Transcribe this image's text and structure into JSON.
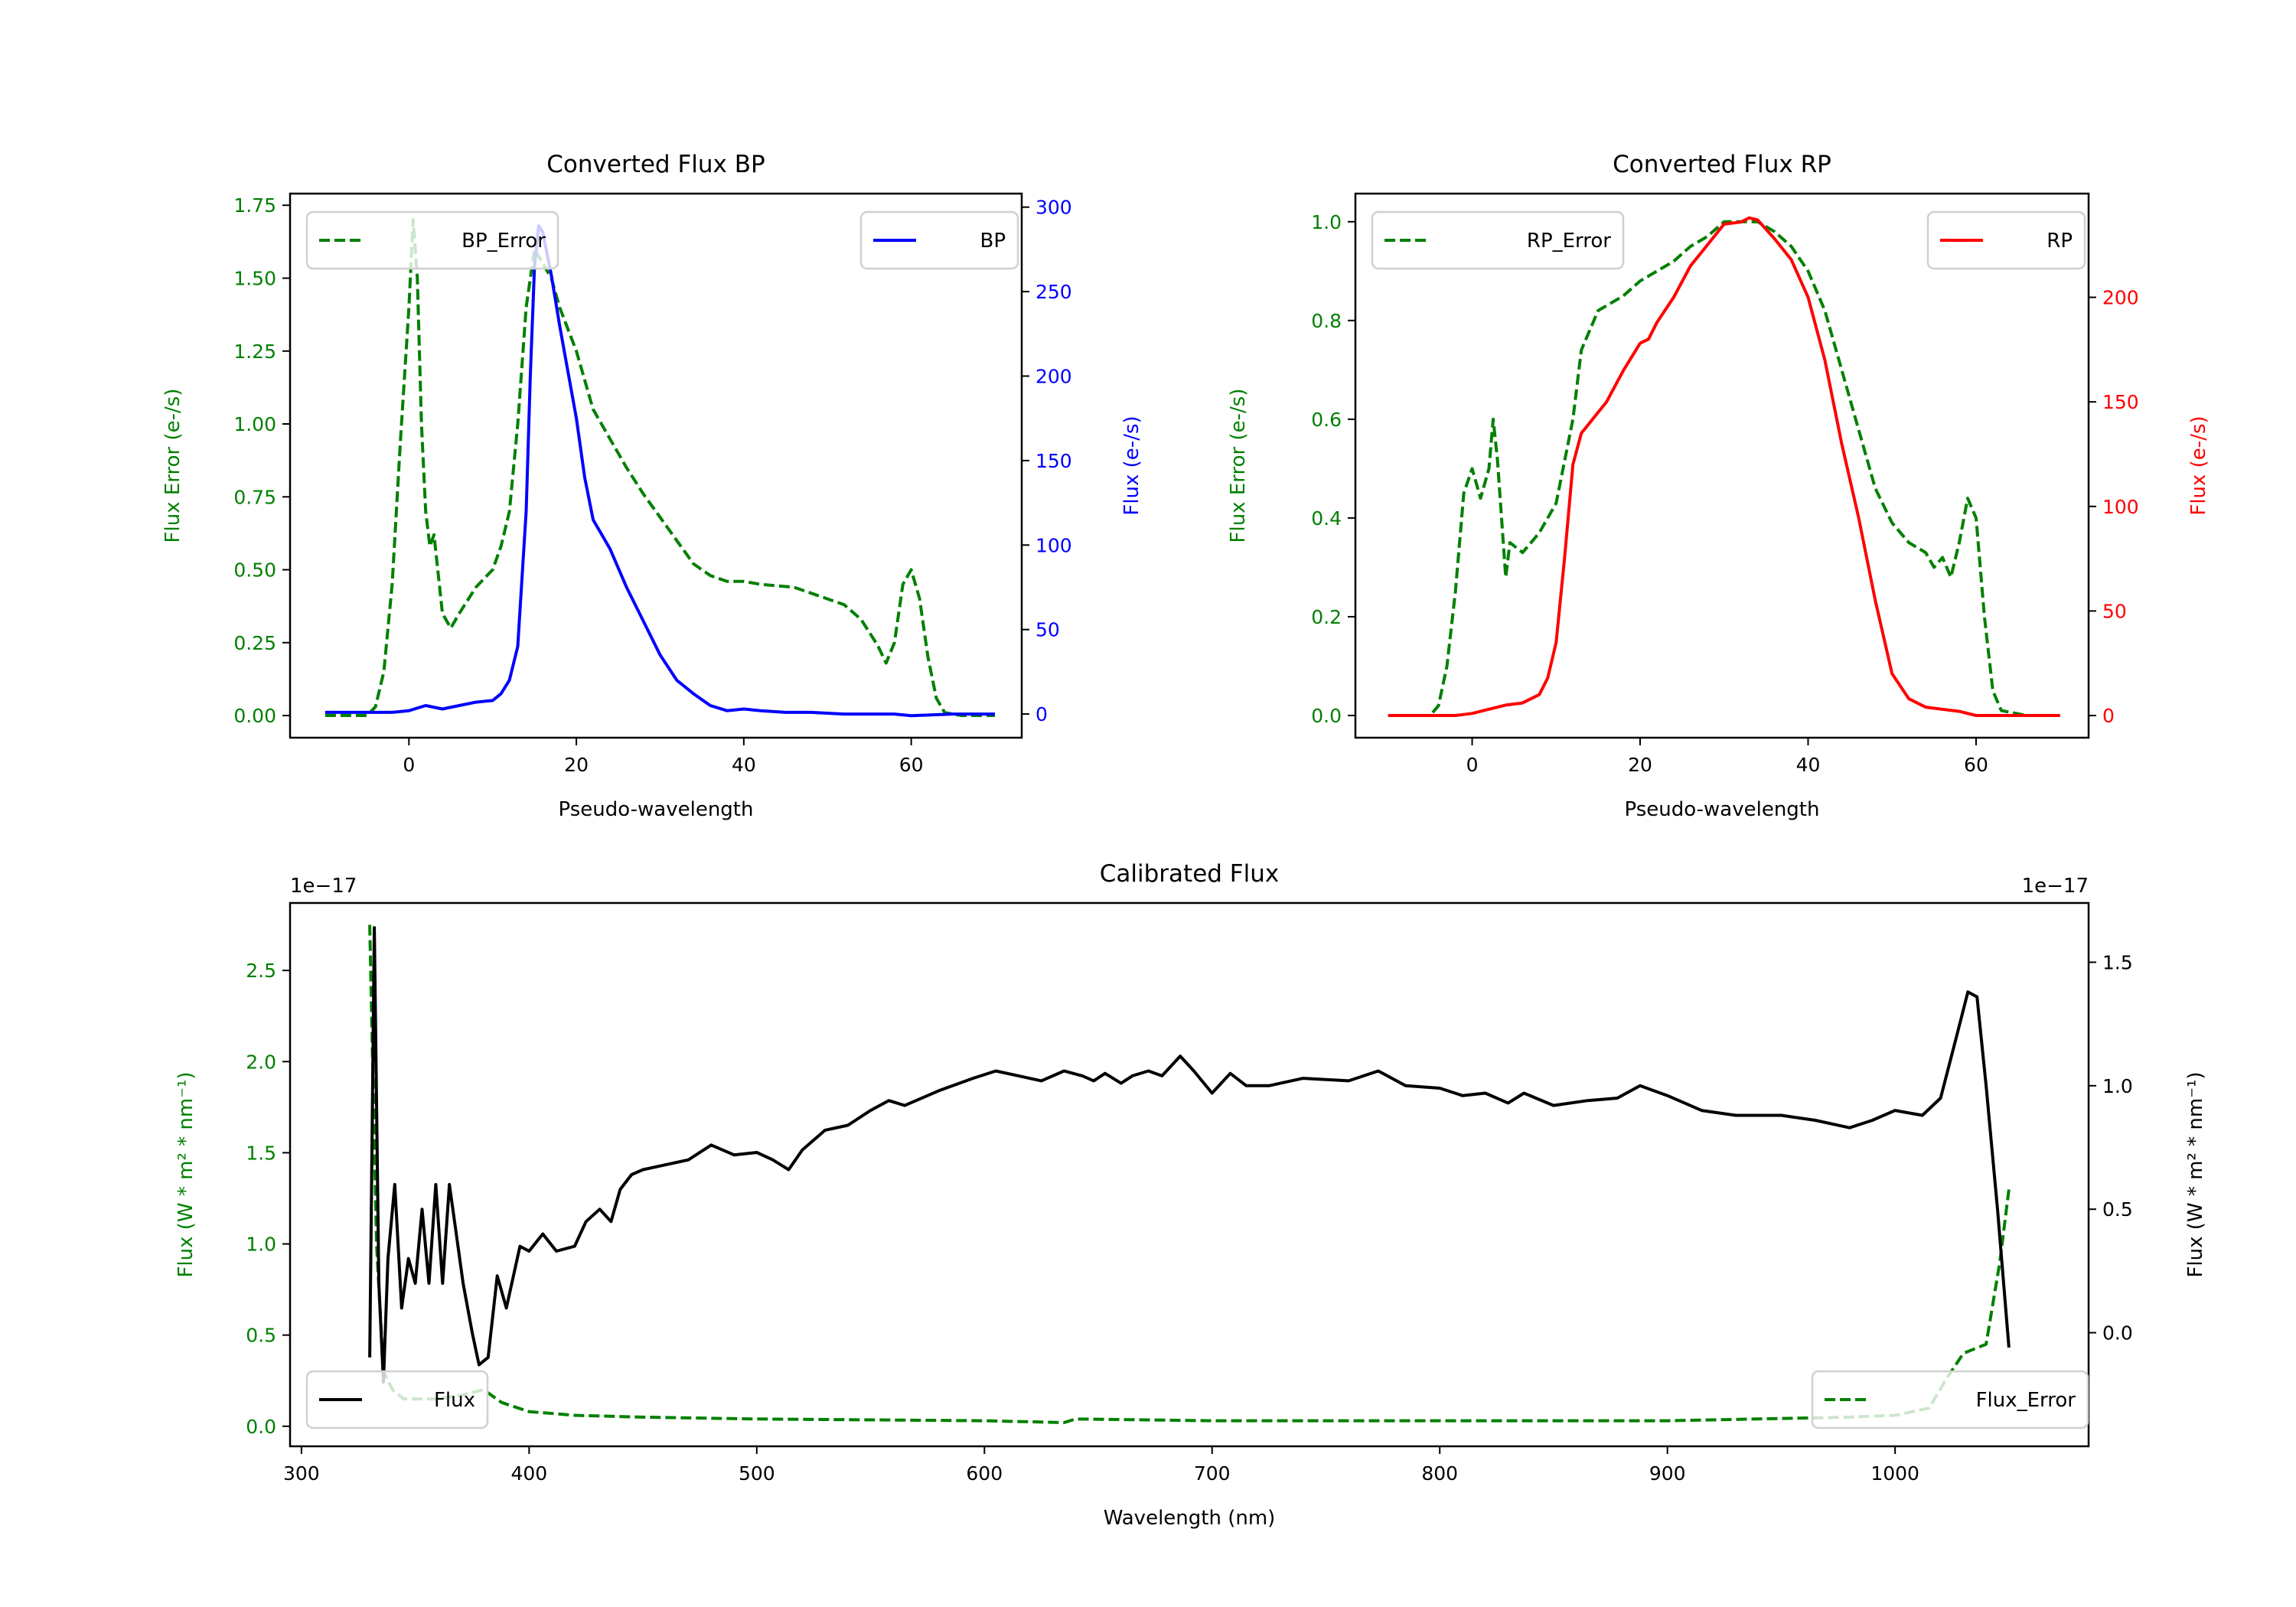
{
  "chart_data": [
    {
      "type": "line",
      "title": "Converted Flux BP",
      "xlabel": "Pseudo-wavelength",
      "ylabel_left": "Flux Error (e-/s)",
      "ylabel_right": "Flux (e-/s)",
      "xlim": [
        -14.2,
        73.2
      ],
      "ylim_left": [
        -0.076,
        1.79
      ],
      "ylim_right": [
        -14,
        308
      ],
      "xticks": [
        0,
        20,
        40,
        60
      ],
      "xtick_labels": [
        "0",
        "20",
        "40",
        "60"
      ],
      "yticks_left": [
        0,
        0.25,
        0.5,
        0.75,
        1.0,
        1.25,
        1.5,
        1.75
      ],
      "ytick_labels_left": [
        "0.00",
        "0.25",
        "0.50",
        "0.75",
        "1.00",
        "1.25",
        "1.50",
        "1.75"
      ],
      "yticks_right": [
        0,
        50,
        100,
        150,
        200,
        250,
        300
      ],
      "ytick_labels_right": [
        "0",
        "50",
        "100",
        "150",
        "200",
        "250",
        "300"
      ],
      "left_color": "#008000",
      "right_color": "#0000ff",
      "legend_left": {
        "label": "BP_Error",
        "placement": "upper left"
      },
      "legend_right": {
        "label": "BP",
        "placement": "upper right"
      },
      "series": [
        {
          "name": "BP_Error",
          "axis": "left",
          "color": "#008000",
          "style": "dashed",
          "x": [
            -10,
            -5,
            -4,
            -3,
            -2,
            -1,
            0,
            0.5,
            1,
            1.5,
            2,
            2.5,
            3,
            4,
            5,
            6,
            8,
            10,
            11,
            12,
            13,
            14,
            15,
            16,
            17,
            18,
            20,
            22,
            24,
            26,
            28,
            30,
            32,
            34,
            36,
            38,
            40,
            42,
            46,
            50,
            52,
            54,
            56,
            57,
            58,
            59,
            60,
            61,
            62,
            63,
            64,
            66,
            70
          ],
          "y": [
            0,
            0,
            0.03,
            0.15,
            0.45,
            0.95,
            1.4,
            1.7,
            1.5,
            1.0,
            0.7,
            0.58,
            0.62,
            0.35,
            0.3,
            0.35,
            0.44,
            0.5,
            0.58,
            0.7,
            1.0,
            1.4,
            1.6,
            1.55,
            1.5,
            1.4,
            1.25,
            1.05,
            0.95,
            0.85,
            0.76,
            0.68,
            0.6,
            0.52,
            0.48,
            0.46,
            0.46,
            0.45,
            0.44,
            0.4,
            0.38,
            0.33,
            0.24,
            0.18,
            0.25,
            0.45,
            0.5,
            0.4,
            0.2,
            0.06,
            0.01,
            0,
            0
          ]
        },
        {
          "name": "BP",
          "axis": "right",
          "color": "#0000ff",
          "style": "solid",
          "x": [
            -10,
            -2,
            0,
            2,
            4,
            6,
            8,
            10,
            11,
            12,
            13,
            14,
            14.5,
            15,
            15.5,
            16,
            17,
            18,
            20,
            21,
            22,
            24,
            26,
            28,
            30,
            32,
            34,
            36,
            38,
            40,
            42,
            45,
            48,
            52,
            58,
            60,
            65,
            70
          ],
          "y": [
            1,
            1,
            2,
            5,
            3,
            5,
            7,
            8,
            12,
            20,
            40,
            120,
            200,
            265,
            289,
            285,
            260,
            230,
            175,
            140,
            115,
            98,
            75,
            55,
            35,
            20,
            12,
            5,
            2,
            3,
            2,
            1,
            1,
            0,
            0,
            -1,
            0,
            0
          ]
        }
      ]
    },
    {
      "type": "line",
      "title": "Converted Flux RP",
      "xlabel": "Pseudo-wavelength",
      "ylabel_left": "Flux Error (e-/s)",
      "ylabel_right": "Flux (e-/s)",
      "xlim": [
        -13.9,
        73.4
      ],
      "ylim_left": [
        -0.045,
        1.057
      ],
      "ylim_right": [
        -10.6,
        249.6
      ],
      "xticks": [
        0,
        20,
        40,
        60
      ],
      "xtick_labels": [
        "0",
        "20",
        "40",
        "60"
      ],
      "yticks_left": [
        0,
        0.2,
        0.4,
        0.6,
        0.8,
        1.0
      ],
      "ytick_labels_left": [
        "0.0",
        "0.2",
        "0.4",
        "0.6",
        "0.8",
        "1.0"
      ],
      "yticks_right": [
        0,
        50,
        100,
        150,
        200
      ],
      "ytick_labels_right": [
        "0",
        "50",
        "100",
        "150",
        "200"
      ],
      "left_color": "#008000",
      "right_color": "#ff0000",
      "legend_left": {
        "label": "RP_Error",
        "placement": "upper left"
      },
      "legend_right": {
        "label": "RP",
        "placement": "upper right"
      },
      "series": [
        {
          "name": "RP_Error",
          "axis": "left",
          "color": "#008000",
          "style": "dashed",
          "x": [
            -10,
            -5,
            -4,
            -3,
            -2,
            -1,
            0,
            1,
            2,
            2.5,
            3,
            4,
            4.5,
            6,
            8,
            10,
            12,
            13,
            15,
            18,
            20,
            22,
            24,
            26,
            28,
            30,
            32,
            34,
            36,
            38,
            40,
            42,
            44,
            46,
            48,
            50,
            52,
            54,
            55,
            56,
            57,
            58,
            59,
            60,
            61,
            62,
            63,
            66,
            70
          ],
          "y": [
            0,
            0,
            0.02,
            0.1,
            0.25,
            0.45,
            0.5,
            0.44,
            0.5,
            0.6,
            0.52,
            0.28,
            0.35,
            0.33,
            0.37,
            0.43,
            0.6,
            0.74,
            0.82,
            0.85,
            0.88,
            0.9,
            0.92,
            0.95,
            0.97,
            1.0,
            1.0,
            1.0,
            0.98,
            0.95,
            0.9,
            0.82,
            0.7,
            0.58,
            0.46,
            0.39,
            0.35,
            0.33,
            0.3,
            0.32,
            0.28,
            0.35,
            0.44,
            0.4,
            0.2,
            0.05,
            0.01,
            0,
            0
          ]
        },
        {
          "name": "RP",
          "axis": "right",
          "color": "#ff0000",
          "style": "solid",
          "x": [
            -10,
            -2,
            0,
            2,
            4,
            6,
            8,
            9,
            10,
            11,
            12,
            13,
            16,
            18,
            20,
            21,
            22,
            24,
            26,
            28,
            30,
            32,
            33,
            34,
            36,
            38,
            40,
            42,
            44,
            46,
            48,
            50,
            52,
            54,
            58,
            60,
            64,
            70
          ],
          "y": [
            0,
            0,
            1,
            3,
            5,
            6,
            10,
            18,
            35,
            75,
            120,
            135,
            150,
            165,
            178,
            180,
            188,
            200,
            215,
            225,
            235,
            236,
            238,
            237,
            228,
            218,
            200,
            170,
            130,
            95,
            55,
            20,
            8,
            4,
            2,
            0,
            0,
            0
          ]
        }
      ]
    },
    {
      "type": "line",
      "title": "Calibrated Flux",
      "xlabel": "Wavelength (nm)",
      "ylabel_left": "Flux (W * m² * nm⁻¹)",
      "ylabel_right": "Flux (W * m² * nm⁻¹)",
      "offset_left": "1e−17",
      "offset_right": "1e−17",
      "xlim": [
        295,
        1085
      ],
      "ylim_left": [
        -0.11,
        2.87
      ],
      "ylim_right": [
        -0.46,
        1.74
      ],
      "xticks": [
        300,
        400,
        500,
        600,
        700,
        800,
        900,
        1000
      ],
      "xtick_labels": [
        "300",
        "400",
        "500",
        "600",
        "700",
        "800",
        "900",
        "1000"
      ],
      "yticks_left": [
        0,
        0.5,
        1.0,
        1.5,
        2.0,
        2.5
      ],
      "ytick_labels_left": [
        "0.0",
        "0.5",
        "1.0",
        "1.5",
        "2.0",
        "2.5"
      ],
      "yticks_right": [
        0,
        0.5,
        1.0,
        1.5
      ],
      "ytick_labels_right": [
        "0.0",
        "0.5",
        "1.0",
        "1.5"
      ],
      "left_color": "#008000",
      "right_color": "#000000",
      "legend_left": {
        "label": "Flux",
        "placement": "lower left"
      },
      "legend_right": {
        "label": "Flux_Error",
        "placement": "lower right"
      },
      "series": [
        {
          "name": "Flux_Error",
          "axis": "left",
          "color": "#008000",
          "style": "dashed",
          "x": [
            330,
            333,
            336,
            340,
            345,
            360,
            370,
            380,
            388,
            400,
            420,
            450,
            500,
            600,
            635,
            640,
            700,
            800,
            900,
            980,
            1000,
            1015,
            1022,
            1030,
            1040,
            1046,
            1050
          ],
          "y": [
            2.75,
            1.0,
            0.3,
            0.2,
            0.15,
            0.15,
            0.17,
            0.2,
            0.13,
            0.08,
            0.06,
            0.05,
            0.04,
            0.03,
            0.02,
            0.04,
            0.03,
            0.03,
            0.03,
            0.05,
            0.06,
            0.1,
            0.25,
            0.4,
            0.45,
            0.9,
            1.3
          ]
        },
        {
          "name": "Flux",
          "axis": "right",
          "color": "#000000",
          "style": "solid",
          "x": [
            330,
            332,
            334,
            336,
            338,
            341,
            344,
            347,
            350,
            353,
            356,
            359,
            362,
            365,
            368,
            371,
            375,
            378,
            382,
            386,
            390,
            396,
            400,
            406,
            412,
            420,
            425,
            431,
            436,
            440,
            445,
            450,
            460,
            470,
            480,
            490,
            500,
            507,
            514,
            520,
            530,
            540,
            550,
            558,
            565,
            580,
            595,
            605,
            615,
            625,
            635,
            643,
            648,
            653,
            660,
            665,
            672,
            678,
            686,
            692,
            700,
            708,
            715,
            725,
            740,
            760,
            773,
            785,
            800,
            810,
            820,
            830,
            837,
            850,
            865,
            878,
            888,
            900,
            915,
            930,
            950,
            965,
            980,
            990,
            1000,
            1012,
            1020,
            1027,
            1032,
            1036,
            1040,
            1045,
            1050
          ],
          "y": [
            -0.1,
            1.64,
            0.2,
            -0.2,
            0.3,
            0.6,
            0.1,
            0.3,
            0.2,
            0.5,
            0.2,
            0.6,
            0.2,
            0.6,
            0.4,
            0.2,
            0.0,
            -0.13,
            -0.1,
            0.23,
            0.1,
            0.35,
            0.33,
            0.4,
            0.33,
            0.35,
            0.45,
            0.5,
            0.45,
            0.58,
            0.64,
            0.66,
            0.68,
            0.7,
            0.76,
            0.72,
            0.73,
            0.7,
            0.66,
            0.74,
            0.82,
            0.84,
            0.9,
            0.94,
            0.92,
            0.98,
            1.03,
            1.06,
            1.04,
            1.02,
            1.06,
            1.04,
            1.02,
            1.05,
            1.01,
            1.04,
            1.06,
            1.04,
            1.12,
            1.06,
            0.97,
            1.05,
            1.0,
            1.0,
            1.03,
            1.02,
            1.06,
            1.0,
            0.99,
            0.96,
            0.97,
            0.93,
            0.97,
            0.92,
            0.94,
            0.95,
            1.0,
            0.96,
            0.9,
            0.88,
            0.88,
            0.86,
            0.83,
            0.86,
            0.9,
            0.88,
            0.95,
            1.2,
            1.38,
            1.36,
            1.0,
            0.5,
            -0.06
          ]
        }
      ]
    }
  ]
}
